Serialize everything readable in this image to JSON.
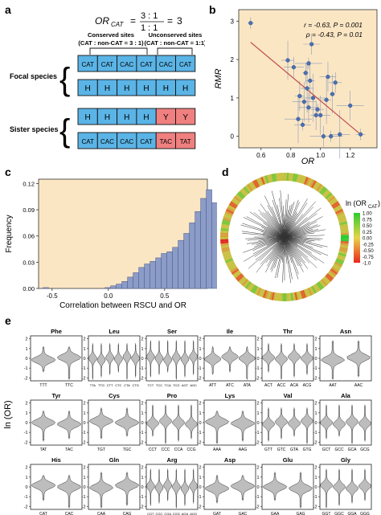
{
  "panel_a": {
    "letter": "a",
    "equation": {
      "lhs": "OR",
      "lhs_sub": "CAT",
      "eq": "=",
      "num": "3 : 1",
      "den": "1 : 1",
      "result": "3"
    },
    "conserved_label": [
      "Conserved sites",
      "(CAT : non-CAT = 3 : 1)"
    ],
    "unconserved_label": [
      "Unconserved sites",
      "(CAT : non-CAT = 1:1)"
    ],
    "focal_label": "Focal species",
    "sister_label": "Sister species",
    "rows": [
      [
        "CAT",
        "CAT",
        "CAC",
        "CAT",
        "CAC",
        "CAT"
      ],
      [
        "H",
        "H",
        "H",
        "H",
        "H",
        "H"
      ],
      [
        "H",
        "H",
        "H",
        "H",
        "Y",
        "Y"
      ],
      [
        "CAT",
        "CAC",
        "CAC",
        "CAT",
        "TAC",
        "TAT"
      ]
    ],
    "colors": {
      "blue": "#5bb4e6",
      "red": "#f08080"
    }
  },
  "panel_b": {
    "letter": "b",
    "stats_line1": "r = -0.63, P = 0.001",
    "stats_line2": "ρ = -0.43, P = 0.01",
    "bg_color": "#fbe6c4"
  },
  "panel_c": {
    "letter": "c",
    "bg_color": "#fbe6c4"
  },
  "panel_d": {
    "letter": "d",
    "legend_title": "ln (OR",
    "legend_sub": "CAT",
    "legend_close": ")",
    "legend_ticks": [
      "1.00",
      "0.75",
      "0.50",
      "0.25",
      "0.00",
      "-0.25",
      "-0.50",
      "-0.75",
      "-1.0"
    ]
  },
  "panel_e": {
    "letter": "e",
    "ylabel": "ln (OR)",
    "yticks": [
      "2",
      "1",
      "0",
      "-1",
      "-2"
    ],
    "panels": [
      {
        "aa": "Phe",
        "codons": [
          "TTT",
          "TTC"
        ]
      },
      {
        "aa": "Leu",
        "codons": [
          "TTA",
          "TTG",
          "CTT",
          "CTC",
          "CTA",
          "CTG"
        ]
      },
      {
        "aa": "Ser",
        "codons": [
          "TCT",
          "TCC",
          "TCA",
          "TCG",
          "AGT",
          "AGC"
        ]
      },
      {
        "aa": "Ile",
        "codons": [
          "ATT",
          "ATC",
          "ATA"
        ]
      },
      {
        "aa": "Thr",
        "codons": [
          "ACT",
          "ACC",
          "ACA",
          "ACG"
        ]
      },
      {
        "aa": "Asn",
        "codons": [
          "AAT",
          "AAC"
        ]
      },
      {
        "aa": "Tyr",
        "codons": [
          "TAT",
          "TAC"
        ]
      },
      {
        "aa": "Cys",
        "codons": [
          "TGT",
          "TGC"
        ]
      },
      {
        "aa": "Pro",
        "codons": [
          "CCT",
          "CCC",
          "CCA",
          "CCG"
        ]
      },
      {
        "aa": "Lys",
        "codons": [
          "AAA",
          "AAG"
        ]
      },
      {
        "aa": "Val",
        "codons": [
          "GTT",
          "GTC",
          "GTA",
          "GTG"
        ]
      },
      {
        "aa": "Ala",
        "codons": [
          "GCT",
          "GCC",
          "GCA",
          "GCG"
        ]
      },
      {
        "aa": "His",
        "codons": [
          "CAT",
          "CAC"
        ]
      },
      {
        "aa": "Gln",
        "codons": [
          "CAA",
          "CAG"
        ]
      },
      {
        "aa": "Arg",
        "codons": [
          "CGT",
          "CGC",
          "CGA",
          "CGG",
          "AGA",
          "AGG"
        ]
      },
      {
        "aa": "Asp",
        "codons": [
          "GAT",
          "GAC"
        ]
      },
      {
        "aa": "Glu",
        "codons": [
          "GAA",
          "GAG"
        ]
      },
      {
        "aa": "Gly",
        "codons": [
          "GGT",
          "GGC",
          "GGA",
          "GGG"
        ]
      }
    ]
  },
  "chart_data": [
    {
      "type": "scatter",
      "xlabel": "OR",
      "ylabel": "RMR",
      "xlim": [
        0.45,
        1.38
      ],
      "ylim": [
        -0.3,
        3.3
      ],
      "xticks": [
        0.6,
        0.8,
        1.0,
        1.2
      ],
      "yticks": [
        0,
        1,
        2,
        3
      ],
      "x": [
        0.53,
        0.78,
        0.82,
        0.85,
        0.86,
        0.88,
        0.89,
        0.9,
        0.91,
        0.92,
        0.92,
        0.93,
        0.94,
        0.95,
        0.97,
        0.98,
        1.0,
        1.02,
        1.04,
        1.05,
        1.07,
        1.08,
        1.1,
        1.13,
        1.2,
        1.27
      ],
      "y": [
        2.95,
        1.98,
        1.8,
        0.45,
        1.05,
        0.3,
        0.9,
        1.65,
        1.25,
        0.75,
        1.9,
        1.45,
        2.4,
        1.0,
        0.55,
        0.7,
        0.55,
        0.0,
        0.95,
        1.55,
        0.0,
        1.1,
        1.4,
        0.05,
        0.8,
        0.05
      ],
      "regression": {
        "x": [
          0.53,
          1.27
        ],
        "y": [
          2.45,
          0.05
        ]
      }
    },
    {
      "type": "bar",
      "xlabel": "Correlation between RSCU and OR",
      "ylabel": "Frequency",
      "xlim": [
        -0.62,
        0.88
      ],
      "ylim": [
        0,
        0.125
      ],
      "xticks": [
        -0.5,
        0.0,
        0.5
      ],
      "yticks": [
        0.0,
        0.03,
        0.06,
        0.09,
        0.12
      ],
      "bin_start": -0.58,
      "bin_width": 0.05,
      "values": [
        0.001,
        0.0,
        0.0,
        0.0,
        0.0,
        0.0,
        0.0,
        0.0,
        0.0,
        0.0,
        0.0,
        0.001,
        0.003,
        0.005,
        0.008,
        0.013,
        0.018,
        0.024,
        0.028,
        0.031,
        0.035,
        0.04,
        0.042,
        0.047,
        0.055,
        0.063,
        0.075,
        0.088,
        0.103,
        0.113,
        0.098,
        0.052,
        0.022
      ]
    },
    {
      "type": "other",
      "description_keys": [
        "radial tree"
      ],
      "legend_range": [
        -1.0,
        1.0
      ]
    }
  ]
}
